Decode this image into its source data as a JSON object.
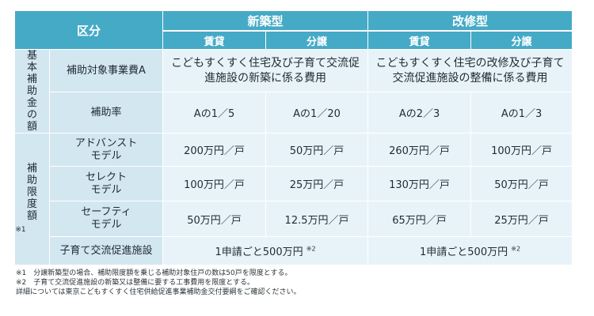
{
  "header": {
    "category": "区分",
    "new_build": "新築型",
    "renovation": "改修型",
    "rental_new": "賃貸",
    "sale_new": "分譲",
    "rental_reno": "賃貸",
    "sale_reno": "分譲"
  },
  "section_basic": {
    "label": "基本補助金の額",
    "rows": {
      "cost": {
        "label": "補助対象事業費A",
        "new": "こどもすくすく住宅及び子育て交流促進施設の新築に係る費用",
        "reno": "こどもすくすく住宅の改修及び子育て交流促進施設の整備に係る費用"
      },
      "rate": {
        "label": "補助率",
        "values": [
          "Aの1／5",
          "Aの1／20",
          "Aの2／3",
          "Aの1／3"
        ]
      }
    }
  },
  "section_limit": {
    "label": "補助限度額",
    "note": "※1",
    "models": [
      {
        "label_line1": "アドバンスト",
        "label_line2": "モデル",
        "values": [
          "200万円／戸",
          "50万円／戸",
          "260万円／戸",
          "100万円／戸"
        ]
      },
      {
        "label_line1": "セレクト",
        "label_line2": "モデル",
        "values": [
          "100万円／戸",
          "25万円／戸",
          "130万円／戸",
          "50万円／戸"
        ]
      },
      {
        "label_line1": "セーフティ",
        "label_line2": "モデル",
        "values": [
          "50万円／戸",
          "12.5万円／戸",
          "65万円／戸",
          "25万円／戸"
        ]
      }
    ],
    "facility": {
      "label": "子育て交流促進施設",
      "new": "1申請ごと500万円",
      "new_note": "※2",
      "reno": "1申請ごと500万円",
      "reno_note": "※2"
    }
  },
  "footnotes": [
    "※1　分譲新築型の場合、補助限度額を乗じる補助対象住戸の数は50戸を限度とする。",
    "※2　子育て交流促進施設の新築又は整備に要する工事費用を限度とする。",
    "詳細については東京こどもすくすく住宅供給促進事業補助金交付要綱をご確認ください。"
  ]
}
